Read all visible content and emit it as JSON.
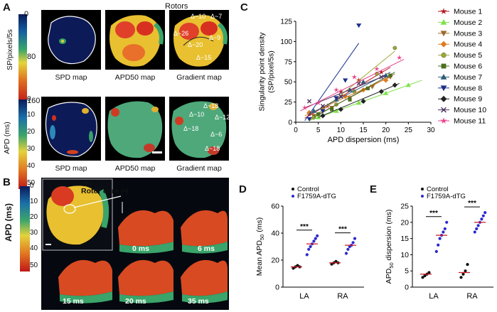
{
  "panel_a": {
    "letter": "A",
    "title": "Rotors",
    "colorbar_top": {
      "label": "SP/pixels/5s",
      "ticks": [
        "0",
        "80",
        "160"
      ]
    },
    "colorbar_bottom": {
      "label": "APD (ms)",
      "ticks": [
        "0",
        "10",
        "20",
        "30",
        "40",
        "50"
      ]
    },
    "row1_captions": [
      "SPD map",
      "APD50 map",
      "Gradient map"
    ],
    "row2_captions": [
      "SPD map",
      "APD50 map",
      "Gradient map"
    ],
    "row1_gradient_labels": [
      "Δ~10",
      "Δ~7",
      "Δ~26",
      "Δ~9",
      "Δ~20",
      "Δ~15"
    ],
    "row2_gradient_labels": [
      "Δ~18",
      "Δ~10",
      "Δ~12",
      "Δ~18",
      "Δ~6",
      "Δ~18"
    ]
  },
  "panel_b": {
    "letter": "B",
    "colorbar": {
      "label": "APD (ms)",
      "ticks": [
        "0",
        "10",
        "20",
        "30",
        "40",
        "50"
      ]
    },
    "label_2d": "2D",
    "rotor_core": "Rotor core (•)",
    "times": [
      "0 ms",
      "6 ms",
      "15 ms",
      "20 ms",
      "35 ms"
    ]
  },
  "panel_c": {
    "letter": "C",
    "chart_data": {
      "type": "scatter",
      "xlabel": "APD dispersion (ms)",
      "ylabel": "Singularity point density (SP/pixel/5s)",
      "xlim": [
        0,
        30
      ],
      "ylim": [
        0,
        125
      ],
      "xticks": [
        0,
        5,
        10,
        15,
        20,
        25,
        30
      ],
      "yticks": [
        0,
        25,
        50,
        75,
        100,
        125
      ],
      "series": [
        {
          "name": "Mouse 1",
          "color": "#b5121b",
          "marker": "star",
          "points": [
            [
              3,
              10
            ],
            [
              7,
              20
            ],
            [
              10,
              38
            ],
            [
              14,
              52
            ],
            [
              19,
              62
            ]
          ],
          "line": [
            [
              2,
              5
            ],
            [
              21,
              68
            ]
          ]
        },
        {
          "name": "Mouse 2",
          "color": "#7fe24a",
          "marker": "triangle-up",
          "points": [
            [
              5,
              6
            ],
            [
              9,
              14
            ],
            [
              14,
              24
            ],
            [
              20,
              36
            ],
            [
              25,
              46
            ]
          ],
          "line": [
            [
              3,
              2
            ],
            [
              28,
              52
            ]
          ]
        },
        {
          "name": "Mouse 3",
          "color": "#9c6b2e",
          "marker": "triangle-down",
          "points": [
            [
              4,
              8
            ],
            [
              8,
              18
            ],
            [
              12,
              30
            ],
            [
              17,
              44
            ],
            [
              21,
              56
            ]
          ],
          "line": [
            [
              3,
              4
            ],
            [
              22,
              60
            ]
          ]
        },
        {
          "name": "Mouse 4",
          "color": "#e07a1f",
          "marker": "diamond",
          "points": [
            [
              3,
              12
            ],
            [
              6,
              18
            ],
            [
              11,
              32
            ],
            [
              15,
              40
            ],
            [
              20,
              52
            ]
          ],
          "line": [
            [
              2,
              8
            ],
            [
              21,
              56
            ]
          ]
        },
        {
          "name": "Mouse 5",
          "color": "#9aa834",
          "marker": "circle",
          "points": [
            [
              4,
              6
            ],
            [
              9,
              22
            ],
            [
              13,
              38
            ],
            [
              18,
              60
            ],
            [
              22,
              92
            ]
          ],
          "line": [
            [
              3,
              2
            ],
            [
              22,
              88
            ]
          ]
        },
        {
          "name": "Mouse 6",
          "color": "#4b6e1f",
          "marker": "square",
          "points": [
            [
              5,
              10
            ],
            [
              8,
              16
            ],
            [
              12,
              28
            ],
            [
              16,
              42
            ],
            [
              21,
              58
            ]
          ],
          "line": [
            [
              4,
              6
            ],
            [
              22,
              62
            ]
          ]
        },
        {
          "name": "Mouse 7",
          "color": "#2f5e7a",
          "marker": "triangle-up",
          "points": [
            [
              4,
              14
            ],
            [
              9,
              28
            ],
            [
              12,
              40
            ],
            [
              15,
              50
            ],
            [
              20,
              58
            ]
          ],
          "line": [
            [
              3,
              10
            ],
            [
              21,
              62
            ]
          ]
        },
        {
          "name": "Mouse 8",
          "color": "#1c2f8a",
          "marker": "triangle-down",
          "points": [
            [
              3,
              4
            ],
            [
              6,
              14
            ],
            [
              9,
              30
            ],
            [
              11,
              52
            ],
            [
              14,
              120
            ]
          ],
          "line": [
            [
              2,
              2
            ],
            [
              14,
              98
            ]
          ]
        },
        {
          "name": "Mouse 9",
          "color": "#222222",
          "marker": "diamond",
          "points": [
            [
              6,
              8
            ],
            [
              10,
              16
            ],
            [
              15,
              26
            ],
            [
              19,
              38
            ],
            [
              22,
              46
            ]
          ],
          "line": [
            [
              5,
              6
            ],
            [
              23,
              48
            ]
          ]
        },
        {
          "name": "Mouse 10",
          "color": "#4a2f5e",
          "marker": "x",
          "points": [
            [
              3,
              26
            ],
            [
              6,
              20
            ],
            [
              10,
              32
            ],
            [
              14,
              48
            ],
            [
              19,
              56
            ]
          ],
          "line": [
            [
              2,
              18
            ],
            [
              20,
              58
            ]
          ]
        },
        {
          "name": "Mouse 11",
          "color": "#e8418b",
          "marker": "star",
          "points": [
            [
              2,
              18
            ],
            [
              5,
              24
            ],
            [
              9,
              40
            ],
            [
              13,
              56
            ],
            [
              18,
              66
            ],
            [
              23,
              80
            ]
          ],
          "line": [
            [
              1,
              14
            ],
            [
              24,
              78
            ]
          ]
        }
      ]
    }
  },
  "panel_d": {
    "letter": "D",
    "chart_data": {
      "type": "scatter",
      "ylabel": "Mean APD50 (ms)",
      "ylim": [
        0,
        60
      ],
      "yticks": [
        0,
        20,
        40,
        60
      ],
      "categories": [
        "LA",
        "RA"
      ],
      "legend": [
        "Control",
        "F1759A-dTG"
      ],
      "significance": [
        "***",
        "***"
      ],
      "groups": [
        {
          "category": "LA",
          "name": "Control",
          "color": "#111111",
          "values": [
            14,
            15,
            16,
            15
          ],
          "mean": 15
        },
        {
          "category": "LA",
          "name": "F1759A-dTG",
          "color": "#2a2ad1",
          "values": [
            24,
            28,
            30,
            32,
            34,
            36,
            38
          ],
          "mean": 32
        },
        {
          "category": "RA",
          "name": "Control",
          "color": "#111111",
          "values": [
            17,
            18,
            19,
            18
          ],
          "mean": 18
        },
        {
          "category": "RA",
          "name": "F1759A-dTG",
          "color": "#2a2ad1",
          "values": [
            25,
            28,
            30,
            31,
            33,
            36
          ],
          "mean": 31
        }
      ]
    }
  },
  "panel_e": {
    "letter": "E",
    "chart_data": {
      "type": "scatter",
      "ylabel": "APD50 dispersion (ms)",
      "ylim": [
        0,
        25
      ],
      "yticks": [
        0,
        5,
        10,
        15,
        20,
        25
      ],
      "categories": [
        "LA",
        "RA"
      ],
      "legend": [
        "Control",
        "F1759A-dTG"
      ],
      "significance": [
        "***",
        "***"
      ],
      "groups": [
        {
          "category": "LA",
          "name": "Control",
          "color": "#111111",
          "values": [
            3,
            3.5,
            4,
            4.5
          ],
          "mean": 4
        },
        {
          "category": "LA",
          "name": "F1759A-dTG",
          "color": "#2a2ad1",
          "values": [
            11,
            13,
            15,
            16,
            17,
            18,
            20
          ],
          "mean": 16
        },
        {
          "category": "RA",
          "name": "Control",
          "color": "#111111",
          "values": [
            3,
            4,
            5,
            7
          ],
          "mean": 4.5
        },
        {
          "category": "RA",
          "name": "F1759A-dTG",
          "color": "#2a2ad1",
          "values": [
            17,
            18,
            19,
            20,
            21,
            22,
            23
          ],
          "mean": 20
        }
      ]
    }
  }
}
